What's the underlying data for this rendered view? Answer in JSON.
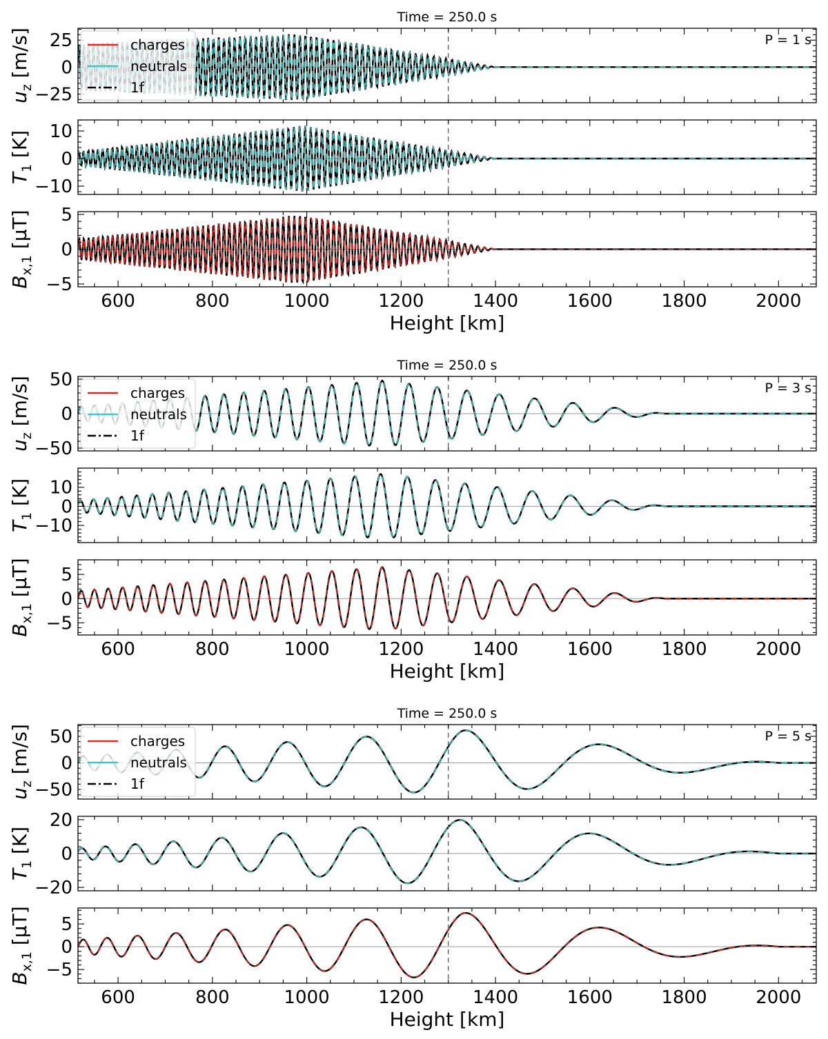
{
  "chart_data": [
    {
      "type": "line",
      "title": "Time = 250.0 s",
      "annotation": "P = 1 s",
      "period_s": 1,
      "marker_height_km": 1300,
      "xlabel": "Height [km]",
      "xlim": [
        515,
        2080
      ],
      "xticks": [
        600,
        800,
        1000,
        1200,
        1400,
        1600,
        1800,
        2000
      ],
      "legend": {
        "location": "top-left",
        "entries": [
          "charges",
          "neutrals",
          "1f"
        ]
      },
      "series_styles": [
        {
          "name": "charges",
          "color": "#e8251e",
          "dash": "solid"
        },
        {
          "name": "neutrals",
          "color": "#3cc8c8",
          "dash": "solid"
        },
        {
          "name": "1f",
          "color": "#000000",
          "dash": "dashdot"
        }
      ],
      "wave": {
        "wavelength_start_km": 10,
        "wavelength_end_km": 13,
        "peak_height_km": 990,
        "decay_end_km": 1400
      },
      "panels": [
        {
          "id": "uz",
          "ylabel_main": "u",
          "ylabel_sub": "z",
          "ylabel_unit": " [m/s]",
          "ylim": [
            -33,
            36
          ],
          "yticks": [
            -25,
            0,
            25
          ],
          "peak_amplitude": 31,
          "base_amplitude": 22,
          "front_series": "neutrals"
        },
        {
          "id": "T1",
          "ylabel_main": "T",
          "ylabel_sub": "1",
          "ylabel_unit": " [K]",
          "ylim": [
            -13,
            14
          ],
          "yticks": [
            -10,
            0,
            10
          ],
          "peak_amplitude": 12,
          "base_amplitude": 2.5,
          "front_series": "neutrals"
        },
        {
          "id": "Bx1",
          "ylabel_main": "B",
          "ylabel_sub": "x,1",
          "ylabel_unit": " [μT]",
          "ylim": [
            -5.4,
            5.4
          ],
          "yticks": [
            -5,
            0,
            5
          ],
          "peak_amplitude": 5,
          "base_amplitude": 1.5,
          "front_series": "charges"
        }
      ]
    },
    {
      "type": "line",
      "title": "Time = 250.0 s",
      "annotation": "P = 3 s",
      "period_s": 3,
      "marker_height_km": 1300,
      "xlabel": "Height [km]",
      "xlim": [
        515,
        2080
      ],
      "xticks": [
        600,
        800,
        1000,
        1200,
        1400,
        1600,
        1800,
        2000
      ],
      "legend": {
        "location": "top-left",
        "entries": [
          "charges",
          "neutrals",
          "1f"
        ]
      },
      "series_styles": [
        {
          "name": "charges",
          "color": "#e8251e",
          "dash": "solid"
        },
        {
          "name": "neutrals",
          "color": "#3cc8c8",
          "dash": "solid"
        },
        {
          "name": "1f",
          "color": "#000000",
          "dash": "dashdot"
        }
      ],
      "wave": {
        "wavelength_start_km": 27,
        "wavelength_end_km": 62,
        "peak_height_km": 1160,
        "decay_end_km": 1760
      },
      "panels": [
        {
          "id": "uz",
          "ylabel_main": "u",
          "ylabel_sub": "z",
          "ylabel_unit": " [m/s]",
          "ylim": [
            -54,
            54
          ],
          "yticks": [
            -50,
            0,
            50
          ],
          "peak_amplitude": 48,
          "base_amplitude": 10,
          "front_series": "neutrals"
        },
        {
          "id": "T1",
          "ylabel_main": "T",
          "ylabel_sub": "1",
          "ylabel_unit": " [K]",
          "ylim": [
            -19,
            20
          ],
          "yticks": [
            -10,
            0,
            10
          ],
          "peak_amplitude": 17,
          "base_amplitude": 3,
          "front_series": "neutrals"
        },
        {
          "id": "Bx1",
          "ylabel_main": "B",
          "ylabel_sub": "x,1",
          "ylabel_unit": " [μT]",
          "ylim": [
            -7.5,
            8
          ],
          "yticks": [
            -5,
            0,
            5
          ],
          "peak_amplitude": 6.5,
          "base_amplitude": 1.6,
          "front_series": "charges"
        }
      ]
    },
    {
      "type": "line",
      "title": "Time = 250.0 s",
      "annotation": "P = 5 s",
      "period_s": 5,
      "marker_height_km": 1300,
      "xlabel": "Height [km]",
      "xlim": [
        515,
        2080
      ],
      "xticks": [
        600,
        800,
        1000,
        1200,
        1400,
        1600,
        1800,
        2000
      ],
      "legend": {
        "location": "top-left",
        "entries": [
          "charges",
          "neutrals",
          "1f"
        ]
      },
      "series_styles": [
        {
          "name": "charges",
          "color": "#e8251e",
          "dash": "solid"
        },
        {
          "name": "neutrals",
          "color": "#3cc8c8",
          "dash": "solid"
        },
        {
          "name": "1f",
          "color": "#000000",
          "dash": "dashdot"
        }
      ],
      "wave": {
        "wavelength_start_km": 42,
        "wavelength_end_km": 230,
        "peak_height_km": 1330,
        "decay_end_km": 2000
      },
      "panels": [
        {
          "id": "uz",
          "ylabel_main": "u",
          "ylabel_sub": "z",
          "ylabel_unit": " [m/s]",
          "ylim": [
            -68,
            72
          ],
          "yticks": [
            -50,
            0,
            50
          ],
          "peak_amplitude": 62,
          "base_amplitude": 12,
          "front_series": "neutrals"
        },
        {
          "id": "T1",
          "ylabel_main": "T",
          "ylabel_sub": "1",
          "ylabel_unit": " [K]",
          "ylim": [
            -22,
            22
          ],
          "yticks": [
            -20,
            0,
            20
          ],
          "peak_amplitude": 20,
          "base_amplitude": 3,
          "front_series": "neutrals"
        },
        {
          "id": "Bx1",
          "ylabel_main": "B",
          "ylabel_sub": "x,1",
          "ylabel_unit": " [μT]",
          "ylim": [
            -8,
            8.5
          ],
          "yticks": [
            -5,
            0,
            5
          ],
          "peak_amplitude": 7.5,
          "base_amplitude": 1.5,
          "front_series": "charges"
        }
      ]
    }
  ]
}
